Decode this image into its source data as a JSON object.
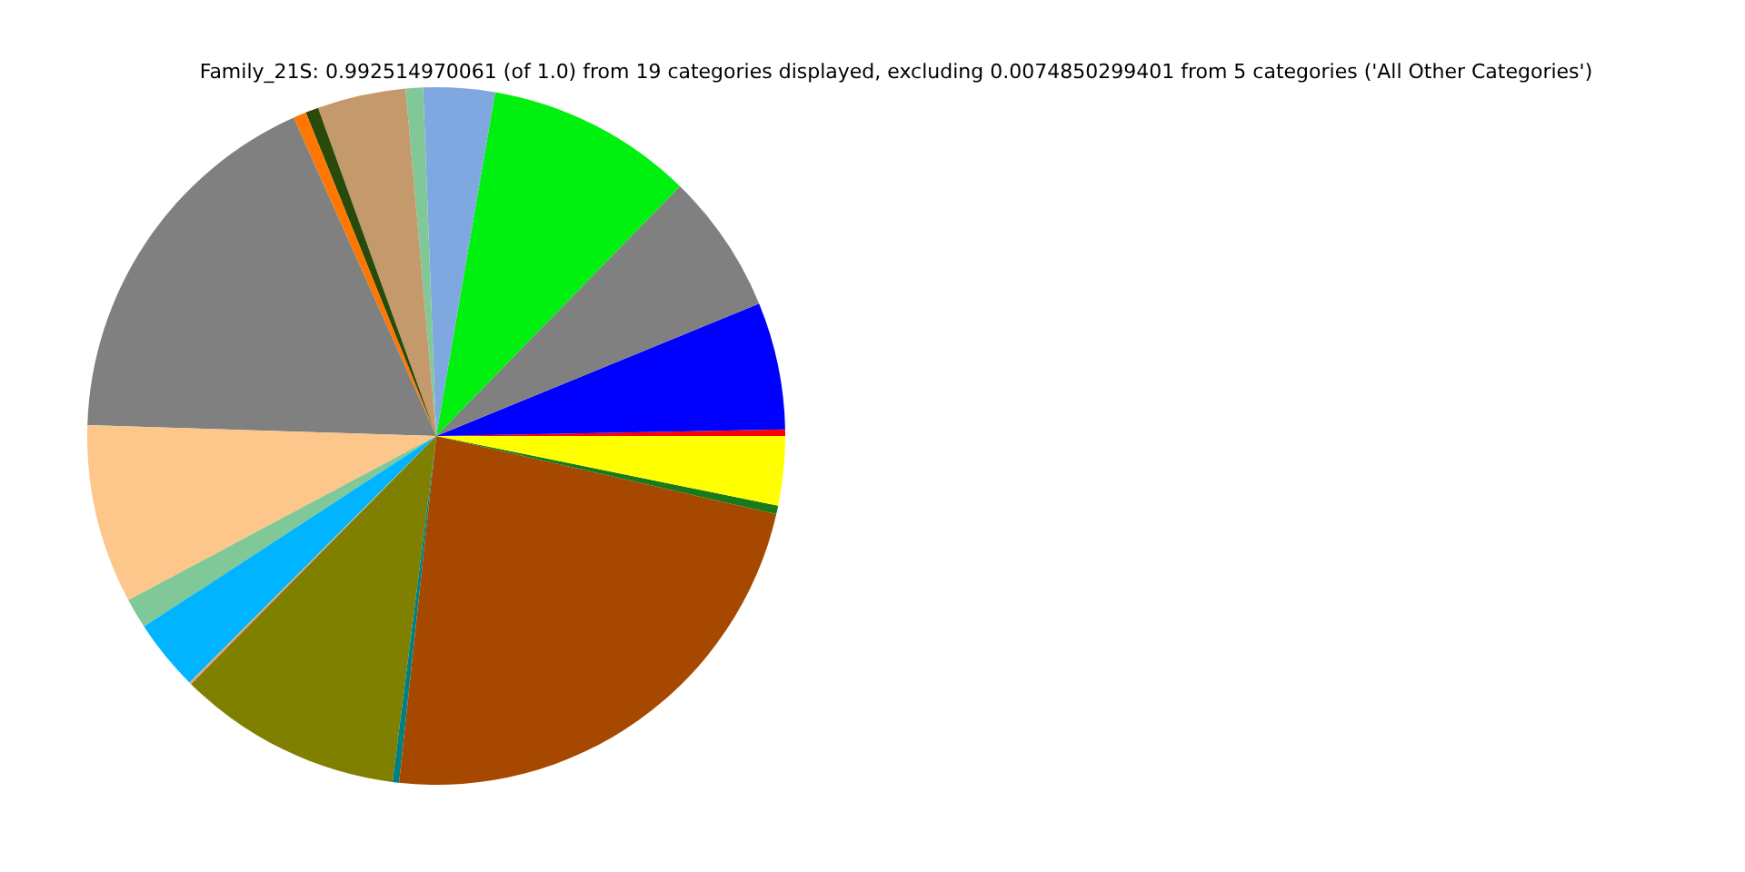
{
  "chart_data": {
    "type": "pie",
    "title": "Family_21S: 0.992514970061 (of 1.0) from 19 categories displayed, excluding 0.0074850299401 from 5 categories ('All Other Categories')",
    "categories": [
      null,
      null,
      null,
      null,
      null,
      null,
      null,
      null,
      null,
      null,
      null,
      null,
      null,
      null,
      null,
      null,
      null,
      null,
      null
    ],
    "values": [
      0.3,
      5.9,
      6.5,
      9.6,
      3.3,
      0.8,
      4.1,
      0.6,
      0.6,
      17.8,
      8.3,
      1.4,
      3.3,
      0.1,
      10.4,
      0.3,
      23.1,
      0.4,
      3.2
    ],
    "colors": [
      "#ff0000",
      "#0000ff",
      "#808080",
      "#00f010",
      "#80a8e0",
      "#80c898",
      "#c49a6c",
      "#2a4a0a",
      "#ff7700",
      "#808080",
      "#fdc68a",
      "#80c898",
      "#00b4ff",
      "#e8a080",
      "#808000",
      "#008080",
      "#a64800",
      "#1a7a1a",
      "#ffff00"
    ]
  }
}
